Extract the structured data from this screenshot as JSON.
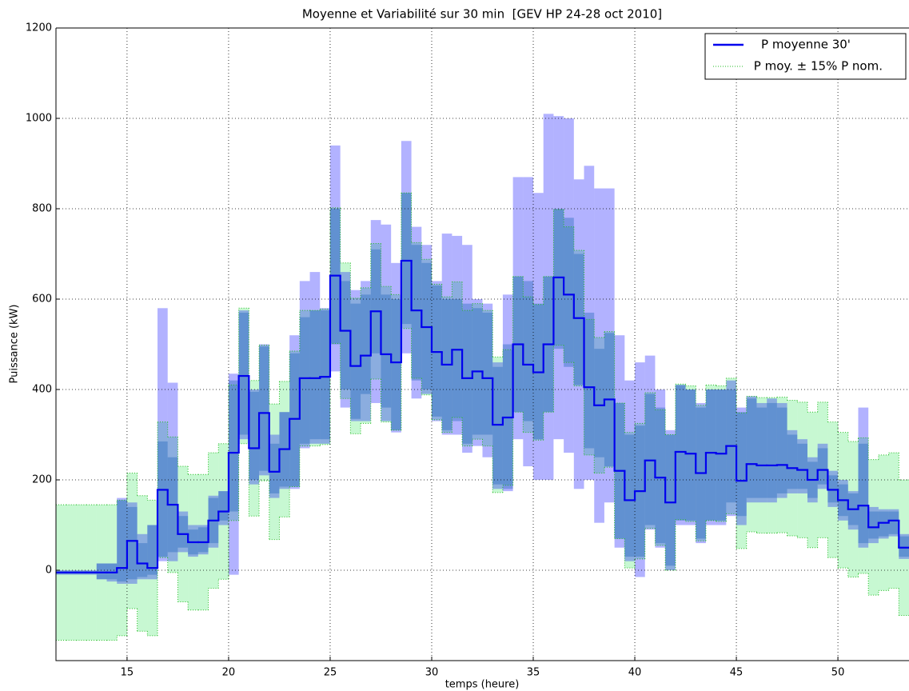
{
  "chart_data": {
    "type": "step",
    "title": "Moyenne et Variabilité sur 30 min  [GEV HP 24-28 oct 2010]",
    "xlabel": "temps (heure)",
    "ylabel": "Puissance (kW)",
    "xlim": [
      11.5,
      53.5
    ],
    "ylim": [
      -200,
      1200
    ],
    "xticks": [
      15,
      20,
      25,
      30,
      35,
      40,
      45,
      50
    ],
    "yticks": [
      0,
      200,
      400,
      600,
      800,
      1000,
      1200
    ],
    "grid": true,
    "legend": "upper right",
    "x": [
      11.5,
      12,
      12.5,
      13,
      13.5,
      14,
      14.5,
      15,
      15.5,
      16,
      16.5,
      17,
      17.5,
      18,
      18.5,
      19,
      19.5,
      20,
      20.5,
      21,
      21.5,
      22,
      22.5,
      23,
      23.5,
      24,
      24.5,
      25,
      25.5,
      26,
      26.5,
      27,
      27.5,
      28,
      28.5,
      29,
      29.5,
      30,
      30.5,
      31,
      31.5,
      32,
      32.5,
      33,
      33.5,
      34,
      34.5,
      35,
      35.5,
      36,
      36.5,
      37,
      37.5,
      38,
      38.5,
      39,
      39.5,
      40,
      40.5,
      41,
      41.5,
      42,
      42.5,
      43,
      43.5,
      44,
      44.5,
      45,
      45.5,
      46,
      46.5,
      47,
      47.5,
      48,
      48.5,
      49,
      49.5,
      50,
      50.5,
      51,
      51.5,
      52,
      52.5,
      53
    ],
    "series": [
      {
        "name": "P moyenne 30'",
        "color": "#0000ee",
        "values": [
          -5,
          -5,
          -5,
          -5,
          -5,
          -5,
          5,
          65,
          15,
          5,
          178,
          145,
          80,
          62,
          62,
          110,
          130,
          260,
          430,
          270,
          348,
          218,
          268,
          335,
          425,
          425,
          428,
          652,
          530,
          452,
          475,
          573,
          478,
          460,
          685,
          575,
          538,
          483,
          455,
          488,
          425,
          440,
          425,
          322,
          338,
          500,
          455,
          438,
          500,
          648,
          610,
          558,
          405,
          365,
          378,
          220,
          155,
          175,
          243,
          205,
          150,
          262,
          258,
          215,
          260,
          258,
          275,
          198,
          235,
          232,
          232,
          233,
          226,
          222,
          200,
          222,
          178,
          155,
          135,
          143,
          95,
          105,
          110,
          50
        ]
      }
    ],
    "bands": [
      {
        "name": " P moy. ± 15% P nom.",
        "color": "#00dd33",
        "alpha": 0.22,
        "edge": "#22bb22",
        "lower": [
          -155,
          -155,
          -155,
          -155,
          -155,
          -155,
          -145,
          -85,
          -135,
          -145,
          28,
          -5,
          -70,
          -88,
          -88,
          -40,
          -20,
          110,
          280,
          120,
          198,
          68,
          118,
          185,
          275,
          275,
          278,
          502,
          380,
          302,
          325,
          423,
          328,
          310,
          535,
          425,
          388,
          333,
          305,
          338,
          275,
          290,
          275,
          172,
          188,
          350,
          305,
          288,
          350,
          498,
          460,
          408,
          255,
          215,
          228,
          70,
          5,
          25,
          93,
          55,
          0,
          112,
          108,
          65,
          110,
          108,
          125,
          48,
          85,
          82,
          82,
          83,
          76,
          72,
          50,
          72,
          28,
          5,
          -15,
          -7,
          -55,
          -45,
          -40,
          -100
        ],
        "upper": [
          145,
          145,
          145,
          145,
          145,
          145,
          155,
          215,
          165,
          155,
          328,
          295,
          230,
          212,
          212,
          260,
          280,
          410,
          580,
          420,
          498,
          368,
          418,
          485,
          575,
          575,
          578,
          802,
          680,
          602,
          625,
          723,
          628,
          610,
          835,
          725,
          688,
          633,
          605,
          638,
          575,
          590,
          575,
          472,
          488,
          650,
          605,
          588,
          650,
          798,
          760,
          708,
          555,
          515,
          528,
          370,
          305,
          325,
          393,
          355,
          300,
          412,
          408,
          365,
          410,
          408,
          425,
          348,
          385,
          382,
          382,
          383,
          376,
          372,
          350,
          372,
          328,
          305,
          285,
          293,
          245,
          255,
          260,
          200
        ]
      },
      {
        "color": "#0000ff",
        "alpha": 0.3,
        "lower": [
          -10,
          -10,
          -10,
          -10,
          -20,
          -25,
          -30,
          -30,
          -20,
          -20,
          20,
          20,
          40,
          30,
          35,
          50,
          100,
          -10,
          290,
          190,
          210,
          160,
          180,
          180,
          270,
          280,
          280,
          440,
          360,
          330,
          330,
          370,
          330,
          305,
          480,
          380,
          390,
          330,
          300,
          300,
          260,
          275,
          250,
          180,
          175,
          290,
          230,
          200,
          200,
          290,
          260,
          180,
          200,
          105,
          150,
          50,
          20,
          -15,
          90,
          50,
          0,
          100,
          100,
          60,
          100,
          100,
          120,
          100,
          150,
          150,
          150,
          160,
          170,
          170,
          150,
          180,
          140,
          110,
          90,
          50,
          60,
          70,
          75,
          25
        ],
        "upper": [
          0,
          0,
          0,
          0,
          15,
          15,
          160,
          150,
          80,
          100,
          580,
          415,
          130,
          100,
          100,
          165,
          175,
          435,
          575,
          400,
          500,
          300,
          350,
          520,
          640,
          660,
          580,
          940,
          660,
          620,
          640,
          775,
          765,
          680,
          950,
          760,
          720,
          640,
          745,
          740,
          720,
          600,
          590,
          460,
          610,
          870,
          870,
          835,
          1010,
          1005,
          1000,
          865,
          895,
          845,
          845,
          520,
          420,
          460,
          475,
          400,
          310,
          410,
          400,
          370,
          400,
          400,
          420,
          360,
          385,
          370,
          380,
          370,
          310,
          290,
          250,
          280,
          220,
          200,
          175,
          360,
          140,
          135,
          135,
          80
        ]
      },
      {
        "color": "#2266bb",
        "alpha": 0.4,
        "lower": [
          -8,
          -8,
          -8,
          -8,
          -20,
          -20,
          -25,
          -20,
          -15,
          -10,
          30,
          40,
          50,
          35,
          40,
          60,
          110,
          130,
          300,
          200,
          220,
          170,
          185,
          185,
          280,
          290,
          290,
          500,
          400,
          335,
          390,
          480,
          360,
          310,
          545,
          420,
          400,
          340,
          310,
          330,
          280,
          300,
          300,
          190,
          180,
          350,
          330,
          290,
          350,
          490,
          450,
          410,
          270,
          250,
          230,
          70,
          30,
          30,
          100,
          60,
          10,
          110,
          110,
          70,
          110,
          110,
          150,
          120,
          160,
          160,
          160,
          170,
          180,
          180,
          160,
          190,
          150,
          120,
          100,
          60,
          70,
          75,
          80,
          30
        ],
        "upper": [
          -2,
          -2,
          -2,
          -2,
          15,
          15,
          155,
          140,
          60,
          100,
          285,
          250,
          120,
          90,
          95,
          160,
          175,
          420,
          570,
          395,
          495,
          280,
          350,
          480,
          560,
          575,
          575,
          800,
          640,
          590,
          610,
          710,
          610,
          600,
          835,
          720,
          680,
          630,
          600,
          600,
          590,
          580,
          570,
          450,
          500,
          650,
          640,
          590,
          650,
          800,
          780,
          700,
          570,
          490,
          525,
          370,
          300,
          320,
          390,
          360,
          300,
          410,
          400,
          360,
          400,
          400,
          400,
          350,
          380,
          360,
          370,
          360,
          300,
          280,
          240,
          270,
          210,
          190,
          170,
          280,
          130,
          130,
          130,
          75
        ]
      }
    ]
  }
}
